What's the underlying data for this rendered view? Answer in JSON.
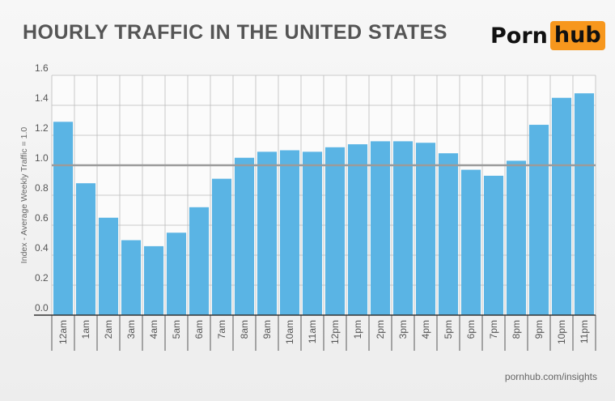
{
  "header": {
    "title": "HOURLY TRAFFIC IN THE UNITED STATES",
    "logo_left": "Porn",
    "logo_right": "hub"
  },
  "footer": {
    "source": "pornhub.com/insights"
  },
  "colors": {
    "bar": "#5ab4e4",
    "grid": "#bbbbbb",
    "reference_line": "#9b9b9b",
    "logo_accent": "#f7971d"
  },
  "chart_data": {
    "type": "bar",
    "title": "HOURLY TRAFFIC IN THE UNITED STATES",
    "xlabel": "",
    "ylabel": "Index - Average Weekly Traffic = 1.0",
    "ylim": [
      0,
      1.6
    ],
    "yticks": [
      "0.0",
      "0.2",
      "0.4",
      "0.6",
      "0.8",
      "1.0",
      "1.2",
      "1.4",
      "1.6"
    ],
    "categories": [
      "12am",
      "1am",
      "2am",
      "3am",
      "4am",
      "5am",
      "6am",
      "7am",
      "8am",
      "9am",
      "10am",
      "11am",
      "12pm",
      "1pm",
      "2pm",
      "3pm",
      "4pm",
      "5pm",
      "6pm",
      "7pm",
      "8pm",
      "9pm",
      "10pm",
      "11pm"
    ],
    "values": [
      1.29,
      0.88,
      0.65,
      0.5,
      0.46,
      0.55,
      0.72,
      0.91,
      1.05,
      1.09,
      1.1,
      1.09,
      1.12,
      1.14,
      1.16,
      1.16,
      1.15,
      1.08,
      0.97,
      0.93,
      1.03,
      1.27,
      1.45,
      1.48
    ],
    "reference_line": 1.0,
    "grid": true,
    "legend": "none"
  }
}
